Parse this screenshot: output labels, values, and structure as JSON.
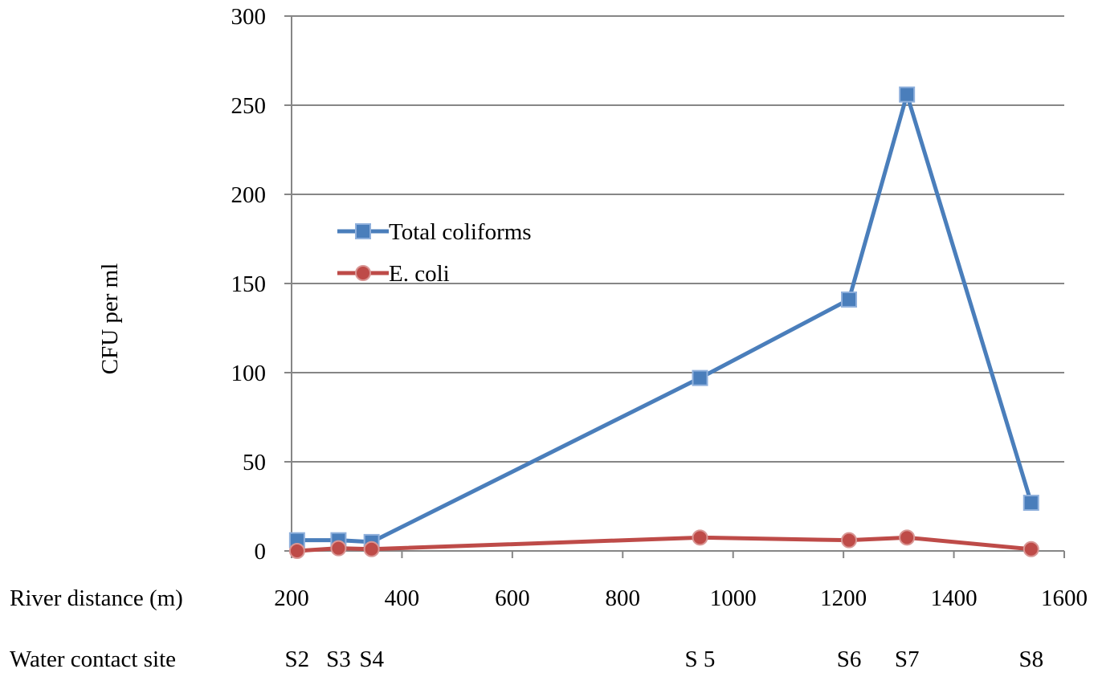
{
  "chart_data": {
    "type": "line",
    "ylabel": "CFU per ml",
    "xlabel": "River distance (m)",
    "site_row_label": "Water contact site",
    "xlim": [
      200,
      1600
    ],
    "ylim": [
      0,
      300
    ],
    "x_ticks": [
      200,
      400,
      600,
      800,
      1000,
      1200,
      1400,
      1600
    ],
    "y_ticks": [
      0,
      50,
      100,
      150,
      200,
      250,
      300
    ],
    "grid": "horizontal",
    "legend_position": "upper-left inside plot",
    "sites": [
      {
        "label": "S2",
        "x": 210
      },
      {
        "label": "S3",
        "x": 285
      },
      {
        "label": "S4",
        "x": 345
      },
      {
        "label": "S 5",
        "x": 940
      },
      {
        "label": "S6",
        "x": 1210
      },
      {
        "label": "S7",
        "x": 1315
      },
      {
        "label": "S8",
        "x": 1540
      }
    ],
    "series": [
      {
        "name": "Total coliforms",
        "color": "#4A7EBB",
        "marker": "square",
        "x": [
          210,
          285,
          345,
          940,
          1210,
          1315,
          1540
        ],
        "values": [
          6,
          6,
          5,
          97,
          141,
          256,
          27
        ]
      },
      {
        "name": "E. coli",
        "color": "#BE4B48",
        "marker": "circle",
        "x": [
          210,
          285,
          345,
          940,
          1210,
          1315,
          1540
        ],
        "values": [
          0,
          1.5,
          1,
          7.5,
          6,
          7.5,
          1
        ]
      }
    ]
  }
}
